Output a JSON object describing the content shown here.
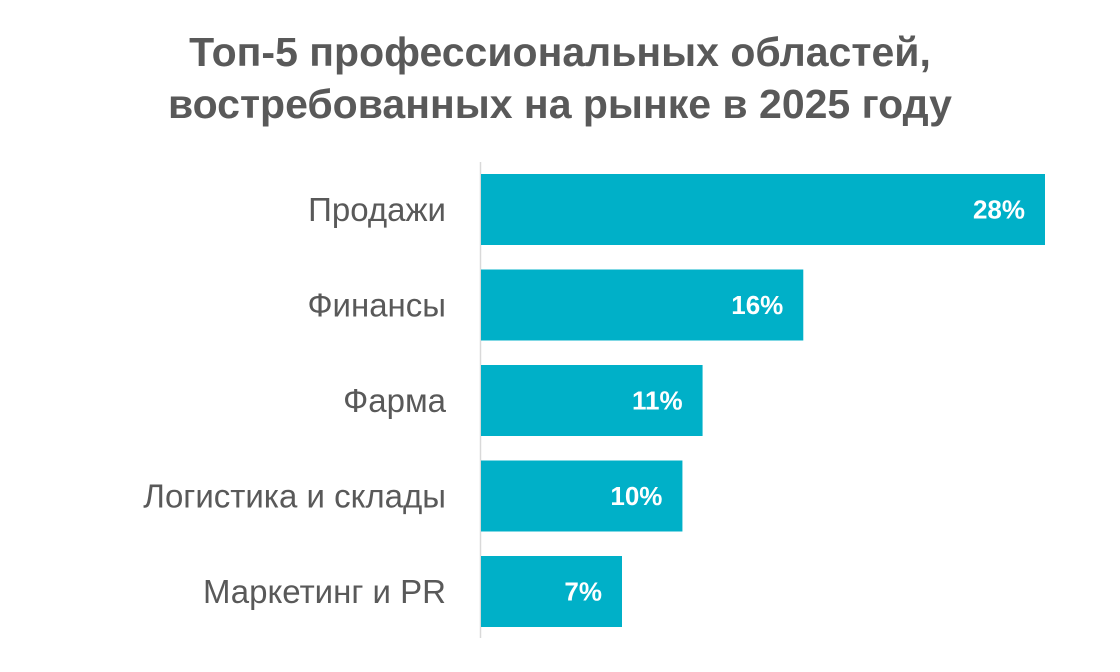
{
  "chart_data": {
    "type": "bar",
    "orientation": "horizontal",
    "title_lines": [
      "Топ-5 профессиональных областей,",
      "востребованных на рынке в 2025 году"
    ],
    "categories": [
      "Продажи",
      "Финансы",
      "Фарма",
      "Логистика и склады",
      "Маркетинг и PR"
    ],
    "values": [
      28,
      16,
      11,
      10,
      7
    ],
    "value_labels": [
      "28%",
      "16%",
      "11%",
      "10%",
      "7%"
    ],
    "unit": "%",
    "xlim": [
      0,
      28
    ],
    "grid": false,
    "legend": "none",
    "bar_color": "#00B0C8",
    "axis_color": "#D9D9D9",
    "text_color": "#595959"
  }
}
